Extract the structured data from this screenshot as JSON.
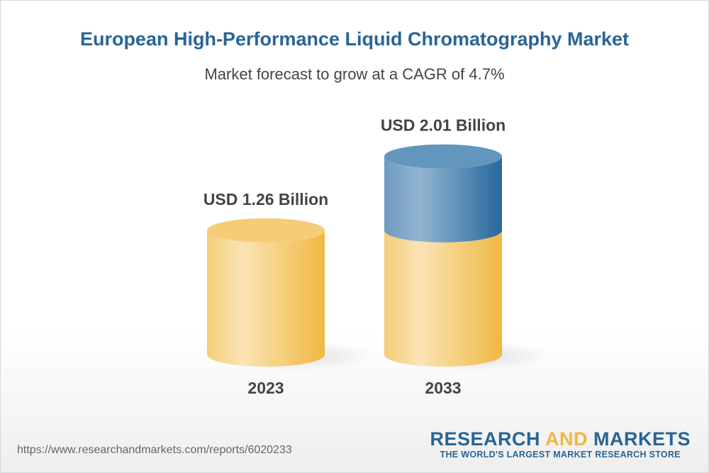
{
  "chart_data": {
    "type": "bar",
    "title": "European High-Performance Liquid Chromatography Market",
    "subtitle": "Market forecast to grow at a CAGR of 4.7%",
    "categories": [
      "2023",
      "2033"
    ],
    "values": [
      1.26,
      2.01
    ],
    "data_labels": [
      "USD 1.26 Billion",
      "USD 2.01 Billion"
    ],
    "unit": "USD Billion",
    "colors": {
      "base": "#f2c75c",
      "growth": "#3f7aab"
    }
  },
  "footer": {
    "url": "https://www.researchandmarkets.com/reports/6020233",
    "logo_part1": "RESEARCH ",
    "logo_part2": "AND",
    "logo_part3": " MARKETS",
    "tagline": "THE WORLD'S LARGEST MARKET RESEARCH STORE"
  }
}
